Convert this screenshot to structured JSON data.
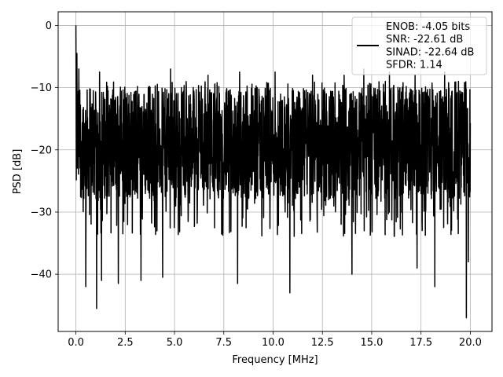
{
  "chart_data": {
    "type": "line",
    "xlabel": "Frequency [MHz]",
    "ylabel": "PSD [dB]",
    "xlim": [
      -0.9,
      21.1
    ],
    "ylim": [
      -49.2,
      2.2
    ],
    "xticks": [
      0.0,
      2.5,
      5.0,
      7.5,
      10.0,
      12.5,
      15.0,
      17.5,
      20.0
    ],
    "xtick_labels": [
      "0.0",
      "2.5",
      "5.0",
      "7.5",
      "10.0",
      "12.5",
      "15.0",
      "17.5",
      "20.0"
    ],
    "yticks": [
      0,
      -10,
      -20,
      -30,
      -40
    ],
    "ytick_labels": [
      "0",
      "−10",
      "−20",
      "−30",
      "−40"
    ],
    "grid": true,
    "legend_position": "top-right",
    "series": [
      {
        "color": "#000000",
        "x_start": 0.0,
        "x_end": 20.0,
        "points": 2001,
        "dc_peak": [
          0.0,
          0.0
        ],
        "baseline_mean": -19,
        "typical_peak": -11,
        "typical_trough": -28,
        "notable_peaks": [
          [
            0.05,
            -4.5
          ],
          [
            0.15,
            -7
          ],
          [
            1.2,
            -7.5
          ],
          [
            4.8,
            -7
          ],
          [
            6.7,
            -8
          ],
          [
            8.3,
            -7.5
          ],
          [
            10.1,
            -7.5
          ],
          [
            12.0,
            -8
          ],
          [
            13.6,
            -8
          ],
          [
            14.6,
            -7
          ],
          [
            15.9,
            -7.5
          ],
          [
            17.2,
            -8
          ],
          [
            18.7,
            -7.5
          ],
          [
            19.4,
            -9
          ]
        ],
        "notable_troughs": [
          [
            0.5,
            -42
          ],
          [
            1.05,
            -45.5
          ],
          [
            1.3,
            -41
          ],
          [
            2.15,
            -41.5
          ],
          [
            3.3,
            -41
          ],
          [
            4.4,
            -40.5
          ],
          [
            8.2,
            -41.5
          ],
          [
            10.85,
            -43
          ],
          [
            14.0,
            -40
          ],
          [
            17.3,
            -39
          ],
          [
            18.2,
            -42
          ],
          [
            19.8,
            -47
          ],
          [
            19.9,
            -38
          ]
        ]
      }
    ],
    "legend": {
      "lines": [
        "ENOB: -4.05 bits",
        "SNR: -22.61 dB",
        "SINAD: -22.64 dB",
        "SFDR: 1.14"
      ]
    }
  }
}
